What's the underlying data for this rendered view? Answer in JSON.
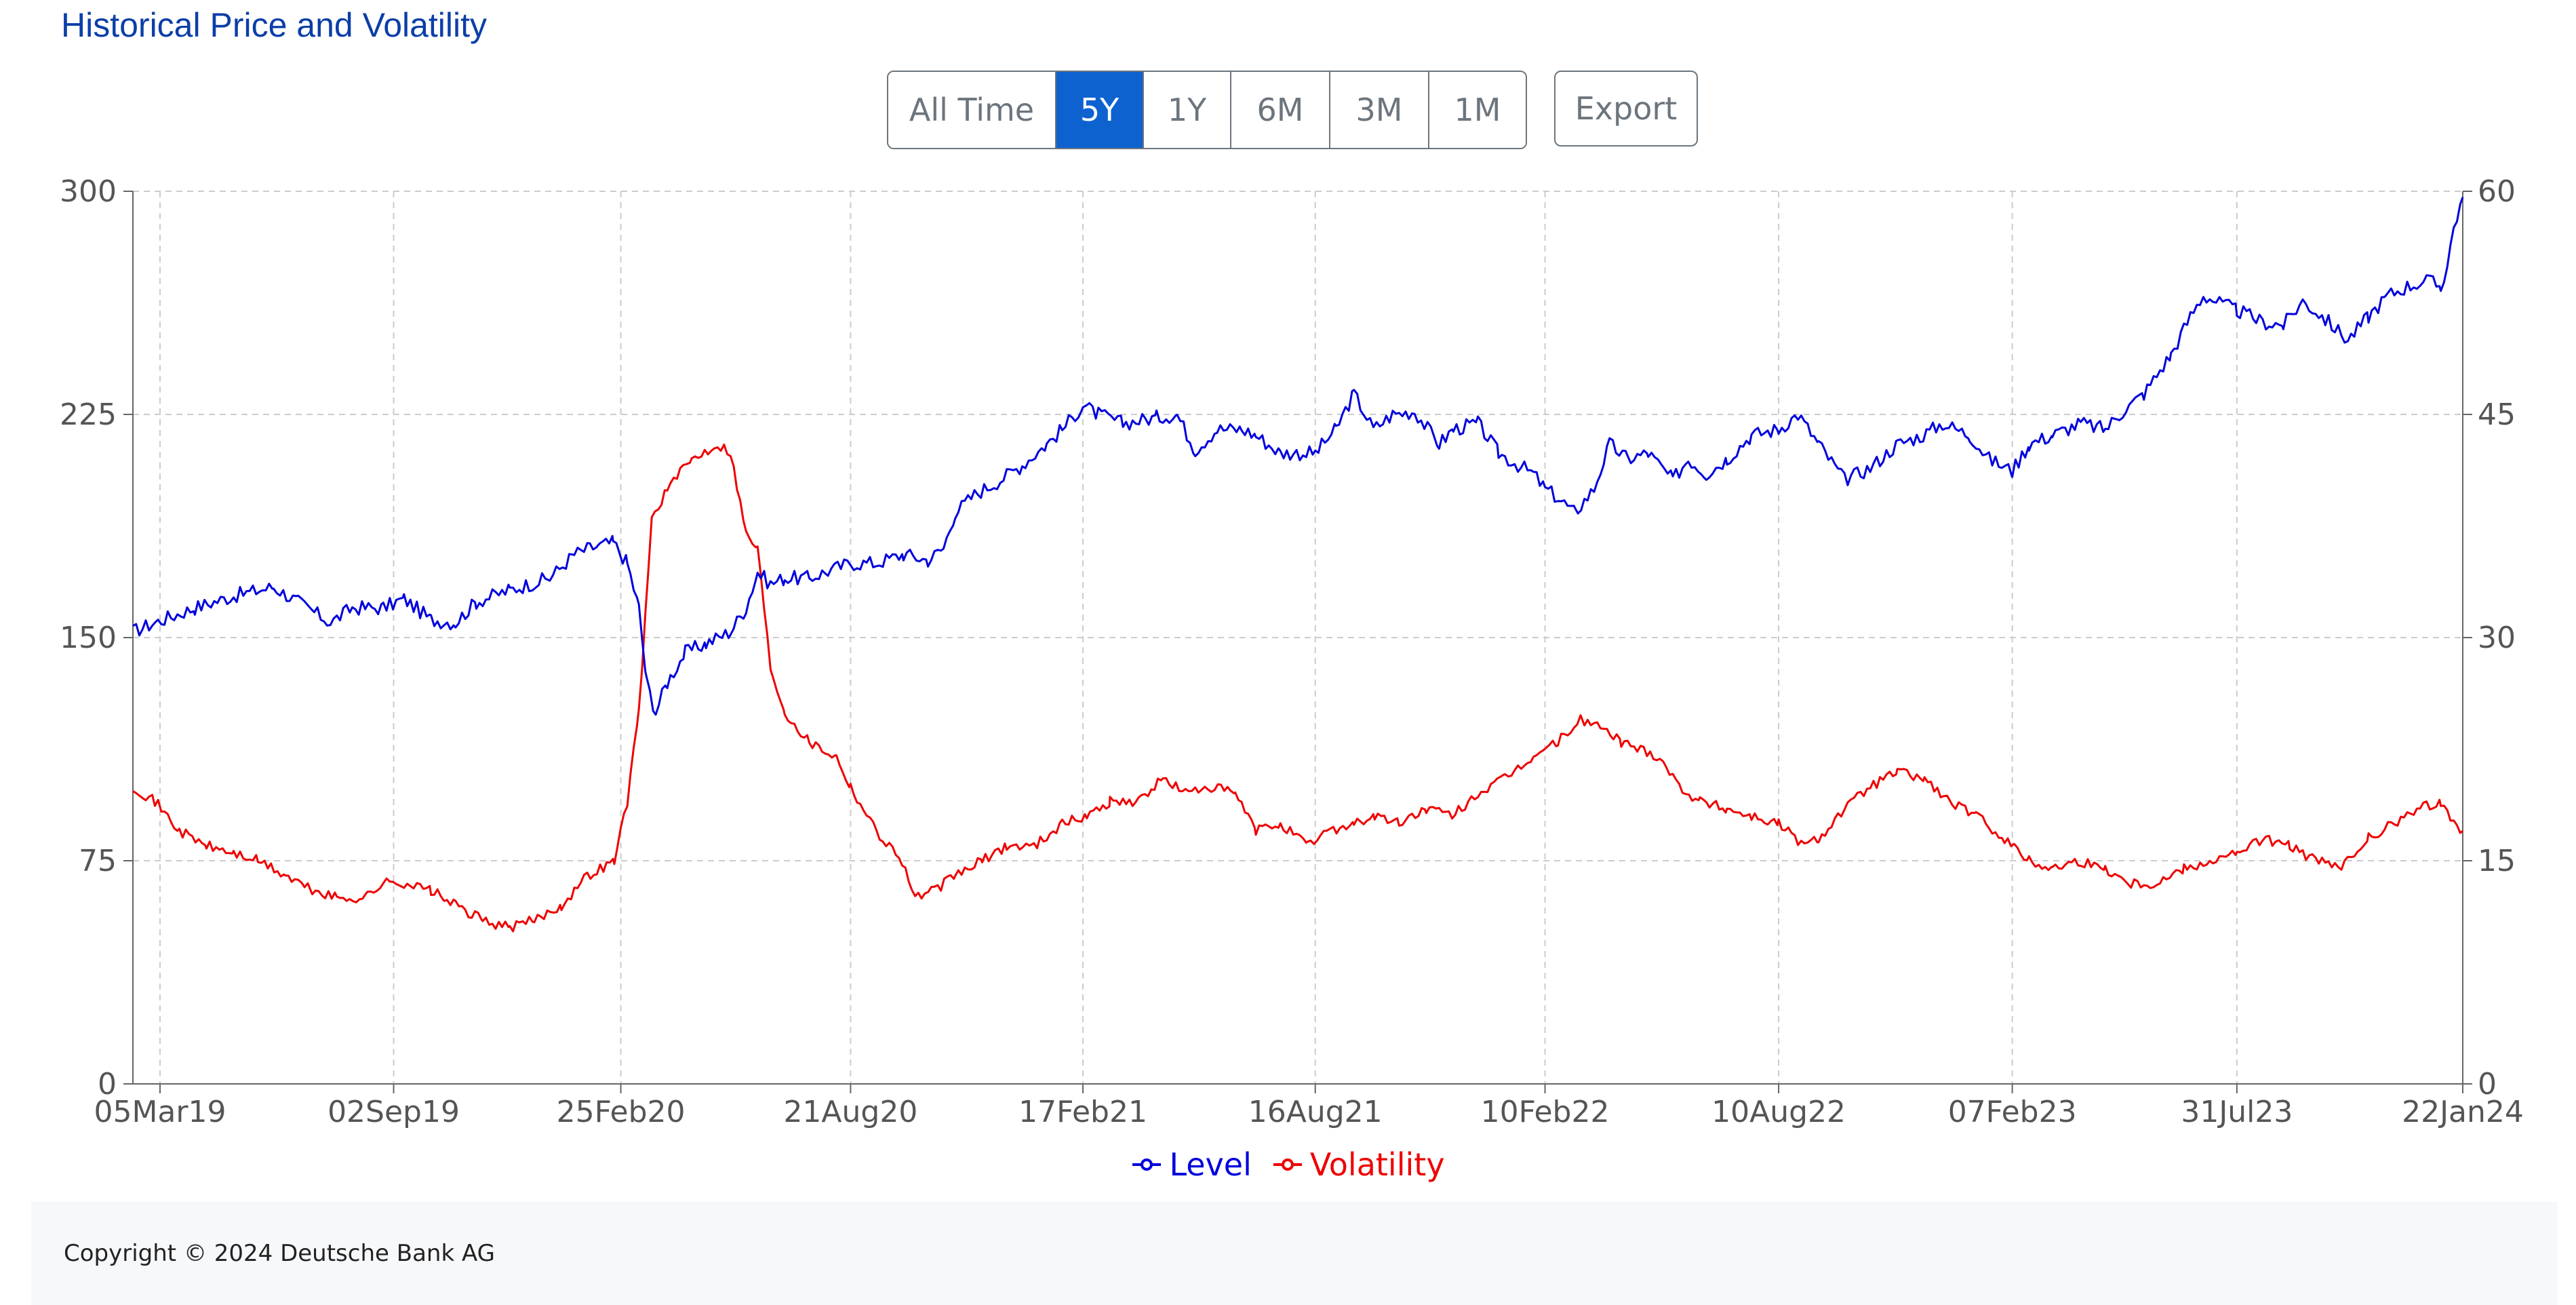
{
  "header": {
    "title": "Historical Price and Volatility"
  },
  "range_buttons": [
    {
      "label": "All Time",
      "active": false
    },
    {
      "label": "5Y",
      "active": true
    },
    {
      "label": "1Y",
      "active": false
    },
    {
      "label": "6M",
      "active": false
    },
    {
      "label": "3M",
      "active": false
    },
    {
      "label": "1M",
      "active": false
    }
  ],
  "export_label": "Export",
  "footer": {
    "copyright": "Copyright © 2024 Deutsche Bank AG"
  },
  "colors": {
    "level": "#0000dd",
    "volatility": "#ee0000",
    "grid": "#cccccc",
    "axis": "#666666",
    "active_button": "#0d62d0"
  },
  "chart_data": {
    "type": "line",
    "title": "",
    "x_ticks": [
      "05Mar19",
      "02Sep19",
      "25Feb20",
      "21Aug20",
      "17Feb21",
      "16Aug21",
      "10Feb22",
      "10Aug22",
      "07Feb23",
      "31Jul23",
      "22Jan24"
    ],
    "x_range": [
      "2019-02-12",
      "2024-01-22"
    ],
    "y_left": {
      "ticks": [
        0,
        75,
        150,
        225,
        300
      ],
      "range": [
        0,
        300
      ]
    },
    "y_right": {
      "ticks": [
        0,
        15,
        30,
        45,
        60
      ],
      "range": [
        0,
        60
      ]
    },
    "grid": true,
    "legend_position": "bottom-center",
    "series": [
      {
        "name": "Level",
        "axis": "left",
        "points": [
          [
            "2019-02-12",
            152
          ],
          [
            "2019-03-01",
            155
          ],
          [
            "2019-04-01",
            160
          ],
          [
            "2019-05-01",
            164
          ],
          [
            "2019-06-01",
            167
          ],
          [
            "2019-06-20",
            162
          ],
          [
            "2019-07-15",
            155
          ],
          [
            "2019-08-01",
            160
          ],
          [
            "2019-08-25",
            160
          ],
          [
            "2019-09-10",
            163
          ],
          [
            "2019-10-01",
            156
          ],
          [
            "2019-10-20",
            155
          ],
          [
            "2019-11-05",
            162
          ],
          [
            "2019-12-01",
            166
          ],
          [
            "2020-01-01",
            170
          ],
          [
            "2020-01-20",
            178
          ],
          [
            "2020-02-01",
            180
          ],
          [
            "2020-02-19",
            182
          ],
          [
            "2020-03-01",
            175
          ],
          [
            "2020-03-10",
            160
          ],
          [
            "2020-03-16",
            135
          ],
          [
            "2020-03-23",
            125
          ],
          [
            "2020-04-01",
            135
          ],
          [
            "2020-04-15",
            145
          ],
          [
            "2020-05-01",
            148
          ],
          [
            "2020-05-20",
            152
          ],
          [
            "2020-06-01",
            160
          ],
          [
            "2020-06-10",
            172
          ],
          [
            "2020-06-20",
            168
          ],
          [
            "2020-07-01",
            170
          ],
          [
            "2020-07-20",
            170
          ],
          [
            "2020-08-01",
            172
          ],
          [
            "2020-08-21",
            175
          ],
          [
            "2020-09-10",
            175
          ],
          [
            "2020-10-01",
            178
          ],
          [
            "2020-10-20",
            176
          ],
          [
            "2020-11-01",
            180
          ],
          [
            "2020-11-10",
            192
          ],
          [
            "2020-11-25",
            198
          ],
          [
            "2020-12-15",
            203
          ],
          [
            "2021-01-01",
            208
          ],
          [
            "2021-01-20",
            215
          ],
          [
            "2021-02-01",
            220
          ],
          [
            "2021-02-17",
            228
          ],
          [
            "2021-03-01",
            225
          ],
          [
            "2021-03-20",
            222
          ],
          [
            "2021-04-15",
            224
          ],
          [
            "2021-05-01",
            225
          ],
          [
            "2021-05-15",
            213
          ],
          [
            "2021-06-01",
            220
          ],
          [
            "2021-06-20",
            220
          ],
          [
            "2021-07-01",
            218
          ],
          [
            "2021-07-20",
            212
          ],
          [
            "2021-08-16",
            212
          ],
          [
            "2021-09-01",
            220
          ],
          [
            "2021-09-15",
            232
          ],
          [
            "2021-09-30",
            220
          ],
          [
            "2021-10-15",
            225
          ],
          [
            "2021-11-01",
            226
          ],
          [
            "2021-11-20",
            215
          ],
          [
            "2021-12-01",
            220
          ],
          [
            "2021-12-20",
            222
          ],
          [
            "2022-01-05",
            212
          ],
          [
            "2022-01-20",
            208
          ],
          [
            "2022-02-01",
            205
          ],
          [
            "2022-02-10",
            200
          ],
          [
            "2022-02-20",
            197
          ],
          [
            "2022-03-05",
            192
          ],
          [
            "2022-03-20",
            200
          ],
          [
            "2022-04-01",
            215
          ],
          [
            "2022-04-15",
            210
          ],
          [
            "2022-05-01",
            212
          ],
          [
            "2022-05-20",
            203
          ],
          [
            "2022-06-01",
            210
          ],
          [
            "2022-06-15",
            205
          ],
          [
            "2022-07-01",
            210
          ],
          [
            "2022-07-20",
            218
          ],
          [
            "2022-08-10",
            220
          ],
          [
            "2022-08-25",
            225
          ],
          [
            "2022-09-10",
            215
          ],
          [
            "2022-09-30",
            203
          ],
          [
            "2022-10-20",
            207
          ],
          [
            "2022-11-10",
            215
          ],
          [
            "2022-11-30",
            218
          ],
          [
            "2022-12-15",
            222
          ],
          [
            "2023-01-05",
            218
          ],
          [
            "2023-01-20",
            210
          ],
          [
            "2023-02-07",
            206
          ],
          [
            "2023-02-20",
            215
          ],
          [
            "2023-03-10",
            218
          ],
          [
            "2023-04-01",
            222
          ],
          [
            "2023-04-20",
            220
          ],
          [
            "2023-05-01",
            225
          ],
          [
            "2023-05-20",
            232
          ],
          [
            "2023-06-10",
            245
          ],
          [
            "2023-06-25",
            258
          ],
          [
            "2023-07-05",
            265
          ],
          [
            "2023-07-20",
            262
          ],
          [
            "2023-07-31",
            260
          ],
          [
            "2023-08-20",
            256
          ],
          [
            "2023-09-05",
            255
          ],
          [
            "2023-09-20",
            263
          ],
          [
            "2023-10-05",
            258
          ],
          [
            "2023-10-25",
            250
          ],
          [
            "2023-11-10",
            258
          ],
          [
            "2023-11-25",
            265
          ],
          [
            "2023-12-10",
            268
          ],
          [
            "2023-12-25",
            270
          ],
          [
            "2024-01-05",
            268
          ],
          [
            "2024-01-10",
            275
          ],
          [
            "2024-01-15",
            288
          ],
          [
            "2024-01-22",
            298
          ]
        ]
      },
      {
        "name": "Volatility",
        "axis": "right",
        "points": [
          [
            "2019-02-12",
            20
          ],
          [
            "2019-03-01",
            19
          ],
          [
            "2019-03-20",
            17
          ],
          [
            "2019-04-10",
            16
          ],
          [
            "2019-05-01",
            15.5
          ],
          [
            "2019-05-20",
            15
          ],
          [
            "2019-06-10",
            14
          ],
          [
            "2019-07-01",
            13
          ],
          [
            "2019-07-20",
            12.5
          ],
          [
            "2019-08-10",
            12.5
          ],
          [
            "2019-08-25",
            13.5
          ],
          [
            "2019-09-10",
            13.5
          ],
          [
            "2019-10-01",
            13
          ],
          [
            "2019-10-20",
            12
          ],
          [
            "2019-11-10",
            11
          ],
          [
            "2019-12-01",
            10.5
          ],
          [
            "2019-12-20",
            11
          ],
          [
            "2020-01-10",
            12
          ],
          [
            "2020-01-30",
            14
          ],
          [
            "2020-02-20",
            15
          ],
          [
            "2020-03-01",
            19
          ],
          [
            "2020-03-10",
            25
          ],
          [
            "2020-03-20",
            38
          ],
          [
            "2020-04-01",
            40
          ],
          [
            "2020-04-20",
            42
          ],
          [
            "2020-05-10",
            43
          ],
          [
            "2020-05-20",
            42.5
          ],
          [
            "2020-06-01",
            37
          ],
          [
            "2020-06-10",
            36
          ],
          [
            "2020-06-20",
            28
          ],
          [
            "2020-07-01",
            25
          ],
          [
            "2020-07-20",
            23
          ],
          [
            "2020-08-10",
            22
          ],
          [
            "2020-08-21",
            20
          ],
          [
            "2020-09-10",
            17
          ],
          [
            "2020-09-30",
            15
          ],
          [
            "2020-10-10",
            12.5
          ],
          [
            "2020-10-25",
            13
          ],
          [
            "2020-11-10",
            14
          ],
          [
            "2020-12-01",
            15
          ],
          [
            "2020-12-20",
            16
          ],
          [
            "2021-01-10",
            16
          ],
          [
            "2021-02-01",
            17.5
          ],
          [
            "2021-02-20",
            18
          ],
          [
            "2021-03-10",
            19
          ],
          [
            "2021-04-01",
            19
          ],
          [
            "2021-04-20",
            20.5
          ],
          [
            "2021-05-10",
            19.5
          ],
          [
            "2021-05-25",
            20
          ],
          [
            "2021-06-15",
            19.5
          ],
          [
            "2021-07-01",
            17
          ],
          [
            "2021-07-20",
            17.5
          ],
          [
            "2021-08-10",
            16
          ],
          [
            "2021-08-25",
            17
          ],
          [
            "2021-09-15",
            17.5
          ],
          [
            "2021-10-01",
            18
          ],
          [
            "2021-10-20",
            17.5
          ],
          [
            "2021-11-10",
            18.5
          ],
          [
            "2021-11-30",
            18
          ],
          [
            "2021-12-20",
            19.5
          ],
          [
            "2022-01-10",
            20.5
          ],
          [
            "2022-02-01",
            22
          ],
          [
            "2022-02-20",
            23
          ],
          [
            "2022-03-10",
            24.5
          ],
          [
            "2022-03-25",
            24
          ],
          [
            "2022-04-10",
            23
          ],
          [
            "2022-04-25",
            22.5
          ],
          [
            "2022-05-10",
            22
          ],
          [
            "2022-05-25",
            20
          ],
          [
            "2022-06-10",
            19
          ],
          [
            "2022-07-01",
            18.5
          ],
          [
            "2022-07-20",
            18
          ],
          [
            "2022-08-10",
            17.5
          ],
          [
            "2022-08-30",
            16
          ],
          [
            "2022-09-10",
            16.5
          ],
          [
            "2022-09-30",
            18.5
          ],
          [
            "2022-10-20",
            20
          ],
          [
            "2022-11-10",
            21
          ],
          [
            "2022-12-01",
            20.5
          ],
          [
            "2022-12-20",
            19
          ],
          [
            "2023-01-10",
            18
          ],
          [
            "2023-02-01",
            16.5
          ],
          [
            "2023-02-20",
            15
          ],
          [
            "2023-03-10",
            14.5
          ],
          [
            "2023-03-30",
            15
          ],
          [
            "2023-04-20",
            14.5
          ],
          [
            "2023-05-10",
            13.5
          ],
          [
            "2023-05-30",
            13.5
          ],
          [
            "2023-06-20",
            14.5
          ],
          [
            "2023-07-10",
            15
          ],
          [
            "2023-07-31",
            15.5
          ],
          [
            "2023-08-20",
            16.5
          ],
          [
            "2023-09-10",
            16
          ],
          [
            "2023-09-30",
            15
          ],
          [
            "2023-10-20",
            14.5
          ],
          [
            "2023-11-10",
            16.5
          ],
          [
            "2023-11-30",
            17.5
          ],
          [
            "2023-12-20",
            18.5
          ],
          [
            "2024-01-05",
            19
          ],
          [
            "2024-01-15",
            17.5
          ],
          [
            "2024-01-22",
            17
          ]
        ]
      }
    ]
  }
}
